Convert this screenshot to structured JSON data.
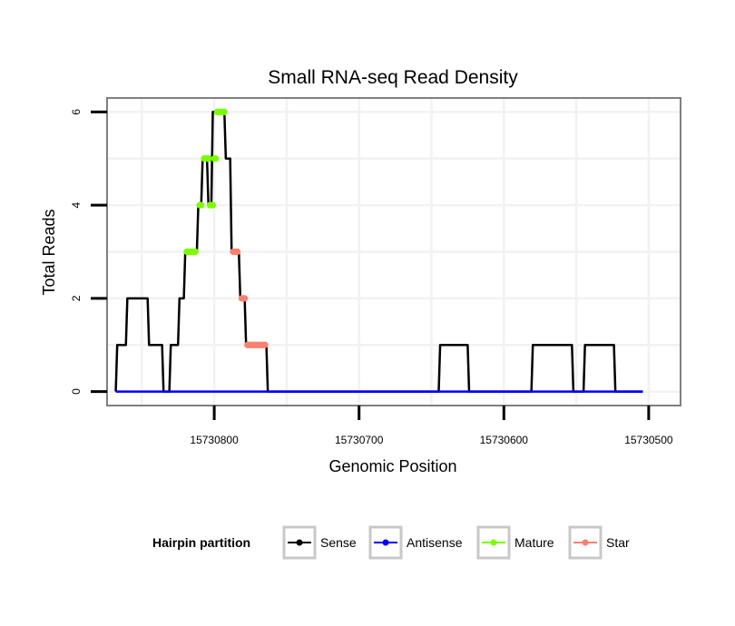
{
  "chart_data": {
    "type": "line",
    "title": "Small RNA-seq Read Density",
    "xlabel": "Genomic Position",
    "ylabel": "Total Reads",
    "xlim": [
      15730874,
      15730478
    ],
    "ylim": [
      -0.3,
      6.3
    ],
    "x_reversed": true,
    "grid": true,
    "legend_position": "bottom",
    "x_ticks": [
      {
        "value": 15730800,
        "label": "15730800"
      },
      {
        "value": 15730700,
        "label": "15730700"
      },
      {
        "value": 15730600,
        "label": "15730600"
      },
      {
        "value": 15730500,
        "label": "15730500"
      }
    ],
    "y_ticks": [
      {
        "value": 0,
        "label": "0"
      },
      {
        "value": 2,
        "label": "2"
      },
      {
        "value": 4,
        "label": "4"
      },
      {
        "value": 6,
        "label": "6"
      }
    ],
    "legend": {
      "title": "Hairpin partition",
      "entries": [
        {
          "name": "Sense",
          "color": "#000000"
        },
        {
          "name": "Antisense",
          "color": "#0000ff"
        },
        {
          "name": "Mature",
          "color": "#7cfc00"
        },
        {
          "name": "Star",
          "color": "#fa8072"
        }
      ]
    },
    "series": [
      {
        "name": "Sense",
        "color": "#000000",
        "points": [
          [
            15730868,
            0
          ],
          [
            15730867,
            1
          ],
          [
            15730861,
            1
          ],
          [
            15730860,
            2
          ],
          [
            15730846,
            2
          ],
          [
            15730845,
            1
          ],
          [
            15730836,
            1
          ],
          [
            15730835,
            0
          ],
          [
            15730831,
            0
          ],
          [
            15730830,
            1
          ],
          [
            15730825,
            1
          ],
          [
            15730824,
            2
          ],
          [
            15730821,
            2
          ],
          [
            15730820,
            3
          ],
          [
            15730812,
            3
          ],
          [
            15730811,
            4
          ],
          [
            15730809,
            4
          ],
          [
            15730808,
            5
          ],
          [
            15730805,
            5
          ],
          [
            15730804,
            4
          ],
          [
            15730802,
            4
          ],
          [
            15730801,
            6
          ],
          [
            15730793,
            6
          ],
          [
            15730792,
            5
          ],
          [
            15730789,
            5
          ],
          [
            15730788,
            3
          ],
          [
            15730783,
            3
          ],
          [
            15730782,
            2
          ],
          [
            15730779,
            2
          ],
          [
            15730778,
            1
          ],
          [
            15730764,
            1
          ],
          [
            15730763,
            0
          ],
          [
            15730645,
            0
          ],
          [
            15730644,
            1
          ],
          [
            15730625,
            1
          ],
          [
            15730624,
            0
          ],
          [
            15730581,
            0
          ],
          [
            15730580,
            1
          ],
          [
            15730553,
            1
          ],
          [
            15730552,
            0
          ],
          [
            15730545,
            0
          ],
          [
            15730544,
            1
          ],
          [
            15730524,
            1
          ],
          [
            15730523,
            0
          ],
          [
            15730504,
            0
          ]
        ]
      },
      {
        "name": "Antisense",
        "color": "#0000ff",
        "points": [
          [
            15730868,
            0
          ],
          [
            15730504,
            0
          ]
        ]
      },
      {
        "name": "Mature",
        "color": "#7cfc00",
        "points": [
          [
            15730819,
            3
          ],
          [
            15730818,
            3
          ],
          [
            15730817,
            3
          ],
          [
            15730816,
            3
          ],
          [
            15730815,
            3
          ],
          [
            15730814,
            3
          ],
          [
            15730813,
            3
          ],
          [
            15730810,
            4
          ],
          [
            15730809,
            4
          ],
          [
            15730807,
            5
          ],
          [
            15730806,
            5
          ],
          [
            15730805,
            5
          ],
          [
            15730804,
            5
          ],
          [
            15730803,
            4
          ],
          [
            15730802,
            4
          ],
          [
            15730801,
            4
          ],
          [
            15730800,
            5
          ],
          [
            15730799,
            5
          ],
          [
            15730798,
            6
          ],
          [
            15730797,
            6
          ],
          [
            15730796,
            6
          ],
          [
            15730795,
            6
          ],
          [
            15730794,
            6
          ],
          [
            15730793,
            6
          ]
        ]
      },
      {
        "name": "Star",
        "color": "#fa8072",
        "points": [
          [
            15730787,
            3
          ],
          [
            15730786,
            3
          ],
          [
            15730785,
            3
          ],
          [
            15730784,
            3
          ],
          [
            15730781,
            2
          ],
          [
            15730780,
            2
          ],
          [
            15730779,
            2
          ],
          [
            15730777,
            1
          ],
          [
            15730776,
            1
          ],
          [
            15730775,
            1
          ],
          [
            15730774,
            1
          ],
          [
            15730773,
            1
          ],
          [
            15730772,
            1
          ],
          [
            15730771,
            1
          ],
          [
            15730770,
            1
          ],
          [
            15730769,
            1
          ],
          [
            15730768,
            1
          ],
          [
            15730767,
            1
          ],
          [
            15730766,
            1
          ],
          [
            15730765,
            1
          ]
        ]
      }
    ]
  }
}
